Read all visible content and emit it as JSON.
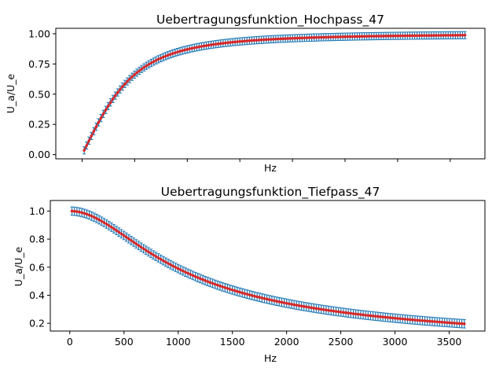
{
  "chart_data": [
    {
      "type": "scatter",
      "title": "Uebertragungsfunktion_Hochpass_47",
      "xlabel": "Hz",
      "ylabel": "U_a/U_e",
      "xlim": [
        -250,
        3830
      ],
      "ylim": [
        -0.035,
        1.045
      ],
      "xticks": [
        0,
        500,
        1000,
        1500,
        2000,
        2500,
        3000,
        3500
      ],
      "show_xtick_labels": false,
      "yticks": [
        0.0,
        0.25,
        0.5,
        0.75,
        1.0
      ],
      "ytick_labels": [
        "0.00",
        "0.25",
        "0.50",
        "0.75",
        "1.00"
      ],
      "grid": false,
      "model": "highpass",
      "cutoff_hz": 565,
      "x_range": [
        20,
        3640
      ],
      "n_points": 160,
      "errorbar": 0.03,
      "points_color": "#d62728",
      "errorbar_color": "#1f77b4",
      "fit_color": "#d62728",
      "sample_points": {
        "x": [
          20,
          100,
          200,
          300,
          400,
          500,
          600,
          800,
          1000,
          1250,
          1500,
          2000,
          2500,
          3000,
          3640
        ],
        "y": [
          0.03,
          0.1,
          0.25,
          0.37,
          0.46,
          0.54,
          0.62,
          0.73,
          0.82,
          0.86,
          0.89,
          0.94,
          0.96,
          0.97,
          0.98
        ]
      }
    },
    {
      "type": "scatter",
      "title": "Uebertragungsfunktion_Tiefpass_47",
      "xlabel": "Hz",
      "ylabel": "U_a/U_e",
      "xlim": [
        -180,
        3830
      ],
      "ylim": [
        0.145,
        1.075
      ],
      "xticks": [
        0,
        500,
        1000,
        1500,
        2000,
        2500,
        3000,
        3500
      ],
      "xtick_labels": [
        "0",
        "500",
        "1000",
        "1500",
        "2000",
        "2500",
        "3000",
        "3500"
      ],
      "yticks": [
        0.2,
        0.4,
        0.6,
        0.8,
        1.0
      ],
      "ytick_labels": [
        "0.2",
        "0.4",
        "0.6",
        "0.8",
        "1.0"
      ],
      "grid": false,
      "model": "lowpass",
      "cutoff_hz": 730,
      "x_range": [
        20,
        3640
      ],
      "n_points": 160,
      "errorbar": 0.03,
      "points_color": "#d62728",
      "errorbar_color": "#1f77b4",
      "fit_color": "#d62728",
      "sample_points": {
        "x": [
          20,
          250,
          500,
          750,
          1000,
          1500,
          2000,
          2500,
          3000,
          3640
        ],
        "y": [
          1.0,
          0.96,
          0.84,
          0.68,
          0.58,
          0.43,
          0.34,
          0.28,
          0.24,
          0.19
        ]
      }
    }
  ]
}
